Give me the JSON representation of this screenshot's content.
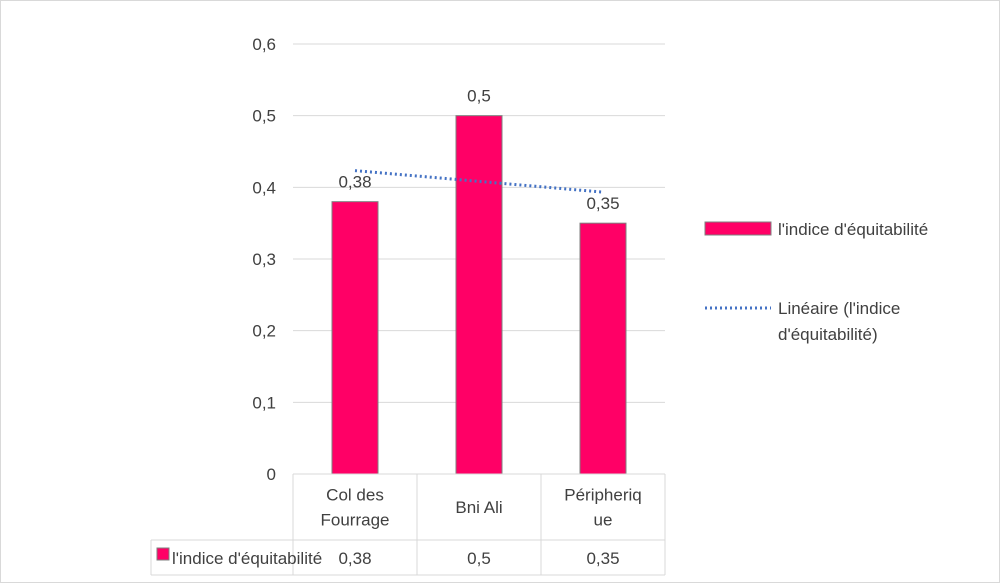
{
  "chart_data": {
    "type": "bar",
    "categories": [
      "Col des Fourrage",
      "Bni Ali",
      "Péripherique"
    ],
    "category_lines": [
      [
        "Col des",
        "Fourrage"
      ],
      [
        "Bni Ali"
      ],
      [
        "Péripheriq",
        "ue"
      ]
    ],
    "series": [
      {
        "name": "l'indice d'équitabilité",
        "values": [
          0.38,
          0.5,
          0.35
        ],
        "color": "#ff0066"
      }
    ],
    "data_labels": [
      "0,38",
      "0,5",
      "0,35"
    ],
    "table_values": [
      "0,38",
      "0,5",
      "0,35"
    ],
    "trendline": {
      "type": "linear",
      "legend_lines": [
        "Linéaire (l'indice",
        "d'équitabilité)"
      ],
      "start": 0.4233,
      "end": 0.3933,
      "color": "#4472c4"
    },
    "y_ticks": [
      0,
      0.1,
      0.2,
      0.3,
      0.4,
      0.5,
      0.6
    ],
    "y_tick_labels": [
      "0",
      "0,1",
      "0,2",
      "0,3",
      "0,4",
      "0,5",
      "0,6"
    ],
    "ylim": [
      0,
      0.6
    ],
    "grid": true,
    "legend_position": "right",
    "data_table": true,
    "title": "",
    "xlabel": "",
    "ylabel": "",
    "colors": {
      "gridline": "#d9d9d9",
      "text": "#404040",
      "bar_border": "#7f7f7f"
    }
  }
}
